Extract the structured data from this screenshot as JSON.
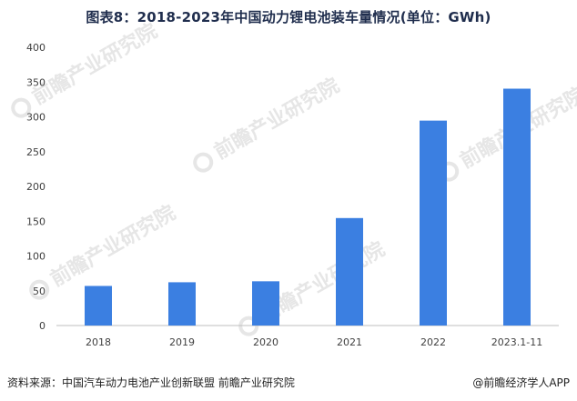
{
  "header": {
    "title": "图表8：2018-2023年中国动力锂电池装车量情况(单位：GWh)"
  },
  "chart_data": {
    "type": "bar",
    "title": "图表8：2018-2023年中国动力锂电池装车量情况(单位：GWh)",
    "categories": [
      "2018",
      "2019",
      "2020",
      "2021",
      "2022",
      "2023.1-11"
    ],
    "values": [
      56.9,
      62.2,
      63.6,
      154.5,
      294.6,
      340.5
    ],
    "ylim": [
      0,
      400
    ],
    "yticks": [
      0,
      50,
      100,
      150,
      200,
      250,
      300,
      350,
      400
    ],
    "grid": false,
    "bar_color": "#3b7fe1",
    "axis_color": "#bfbfbf",
    "tick_label_color": "#404040"
  },
  "footer": {
    "source": "资料来源：中国汽车动力电池产业创新联盟 前瞻产业研究院",
    "credit": "@前瞻经济学人APP"
  },
  "watermark": {
    "text": "前瞻产业研究院"
  }
}
